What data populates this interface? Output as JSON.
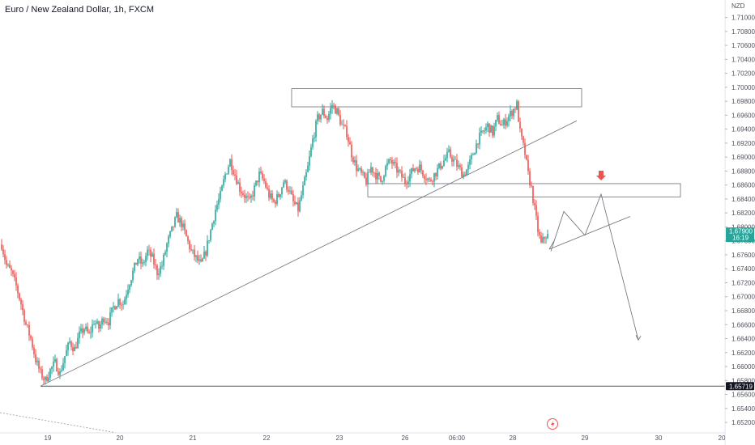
{
  "header": {
    "title": "Euro / New Zealand Dollar, 1h, FXCM"
  },
  "colors": {
    "up": "#26a69a",
    "down": "#ef5350",
    "drawing": "#6a6d78",
    "price_badge": "#26a69a",
    "level_badge": "#131722",
    "marker": "#ef5350"
  },
  "icons": {
    "alert": "lightning-bolt-icon"
  },
  "chart_data": {
    "type": "candlestick",
    "title": "Euro / New Zealand Dollar, 1h, FXCM",
    "unit_label": "NZD",
    "ylim": [
      1.6505,
      1.7125
    ],
    "y_ticks": [
      "1.71000",
      "1.70800",
      "1.70600",
      "1.70400",
      "1.70200",
      "1.70000",
      "1.69800",
      "1.69600",
      "1.69400",
      "1.69200",
      "1.69000",
      "1.68800",
      "1.68600",
      "1.68400",
      "1.68200",
      "1.68000",
      "1.67800",
      "1.67600",
      "1.67400",
      "1.67200",
      "1.67000",
      "1.66800",
      "1.66600",
      "1.66400",
      "1.66200",
      "1.66000",
      "1.65800",
      "1.65600",
      "1.65400",
      "1.65200"
    ],
    "x_ticks": [
      "19",
      "20",
      "21",
      "22",
      "23",
      "26",
      "06:00",
      "28",
      "29",
      "30",
      "20"
    ],
    "current_price": {
      "value": "1.67900",
      "countdown": "16:19"
    },
    "level_label": "1.65719",
    "keypoints": [
      [
        0,
        1.6775
      ],
      [
        3,
        1.6745
      ],
      [
        6,
        1.6735
      ],
      [
        9,
        1.6715
      ],
      [
        12,
        1.669
      ],
      [
        15,
        1.666
      ],
      [
        18,
        1.664
      ],
      [
        21,
        1.661
      ],
      [
        24,
        1.659
      ],
      [
        27,
        1.658
      ],
      [
        30,
        1.6595
      ],
      [
        33,
        1.6605
      ],
      [
        36,
        1.659
      ],
      [
        39,
        1.6615
      ],
      [
        42,
        1.6635
      ],
      [
        45,
        1.6625
      ],
      [
        48,
        1.6645
      ],
      [
        51,
        1.6655
      ],
      [
        54,
        1.6645
      ],
      [
        57,
        1.6665
      ],
      [
        60,
        1.6655
      ],
      [
        63,
        1.667
      ],
      [
        66,
        1.6665
      ],
      [
        69,
        1.6685
      ],
      [
        72,
        1.6695
      ],
      [
        75,
        1.669
      ],
      [
        78,
        1.6715
      ],
      [
        81,
        1.6735
      ],
      [
        84,
        1.6755
      ],
      [
        87,
        1.6745
      ],
      [
        90,
        1.6765
      ],
      [
        93,
        1.6755
      ],
      [
        96,
        1.6735
      ],
      [
        99,
        1.6745
      ],
      [
        102,
        1.6775
      ],
      [
        105,
        1.6795
      ],
      [
        108,
        1.6815
      ],
      [
        111,
        1.6805
      ],
      [
        114,
        1.6785
      ],
      [
        117,
        1.6765
      ],
      [
        120,
        1.6755
      ],
      [
        123,
        1.6745
      ],
      [
        126,
        1.6765
      ],
      [
        129,
        1.6795
      ],
      [
        132,
        1.6825
      ],
      [
        135,
        1.6845
      ],
      [
        138,
        1.6875
      ],
      [
        141,
        1.6895
      ],
      [
        144,
        1.6875
      ],
      [
        147,
        1.6855
      ],
      [
        150,
        1.6845
      ],
      [
        153,
        1.6835
      ],
      [
        156,
        1.6855
      ],
      [
        159,
        1.6875
      ],
      [
        162,
        1.6865
      ],
      [
        165,
        1.6845
      ],
      [
        168,
        1.6835
      ],
      [
        171,
        1.6845
      ],
      [
        174,
        1.6865
      ],
      [
        177,
        1.6855
      ],
      [
        180,
        1.6835
      ],
      [
        183,
        1.6825
      ],
      [
        186,
        1.6855
      ],
      [
        189,
        1.6885
      ],
      [
        192,
        1.6925
      ],
      [
        195,
        1.6955
      ],
      [
        198,
        1.6965
      ],
      [
        201,
        1.6955
      ],
      [
        204,
        1.6975
      ],
      [
        207,
        1.6965
      ],
      [
        210,
        1.6945
      ],
      [
        213,
        1.6935
      ],
      [
        216,
        1.6905
      ],
      [
        219,
        1.6885
      ],
      [
        222,
        1.6875
      ],
      [
        225,
        1.6865
      ],
      [
        228,
        1.6885
      ],
      [
        231,
        1.6875
      ],
      [
        234,
        1.6865
      ],
      [
        237,
        1.6885
      ],
      [
        240,
        1.6895
      ],
      [
        243,
        1.6885
      ],
      [
        246,
        1.6875
      ],
      [
        249,
        1.6865
      ],
      [
        252,
        1.6875
      ],
      [
        255,
        1.6885
      ],
      [
        258,
        1.6885
      ],
      [
        261,
        1.6875
      ],
      [
        264,
        1.6865
      ],
      [
        267,
        1.6875
      ],
      [
        270,
        1.6885
      ],
      [
        273,
        1.6895
      ],
      [
        276,
        1.6905
      ],
      [
        279,
        1.6895
      ],
      [
        282,
        1.6885
      ],
      [
        285,
        1.6875
      ],
      [
        288,
        1.6885
      ],
      [
        291,
        1.6905
      ],
      [
        294,
        1.6925
      ],
      [
        297,
        1.6935
      ],
      [
        300,
        1.6945
      ],
      [
        303,
        1.6935
      ],
      [
        306,
        1.6955
      ],
      [
        309,
        1.6945
      ],
      [
        312,
        1.6955
      ],
      [
        315,
        1.6965
      ],
      [
        318,
        1.6975
      ],
      [
        320,
        1.6935
      ],
      [
        323,
        1.6905
      ],
      [
        325,
        1.6875
      ],
      [
        327,
        1.6855
      ],
      [
        329,
        1.6825
      ],
      [
        331,
        1.6795
      ],
      [
        333,
        1.6775
      ],
      [
        335,
        1.6785
      ],
      [
        337,
        1.679
      ]
    ],
    "candle_count": 338,
    "volatility": 0.0014,
    "series": [
      {
        "values_source": "keypoints"
      }
    ],
    "annotations": {
      "top_zone": [
        1.6972,
        1.6998
      ],
      "support_zone": [
        1.6843,
        1.6862
      ],
      "horizontal_level": 1.65719,
      "trend_line": [
        [
          1.6572,
          0
        ],
        [
          1.6952,
          1
        ]
      ],
      "projection_path": [
        1.6765,
        1.6822,
        1.6788,
        1.6847,
        1.6638
      ],
      "projection_channel": [
        [
          1.6768,
          1.6815
        ]
      ],
      "sell_marker": 1.6862
    }
  }
}
